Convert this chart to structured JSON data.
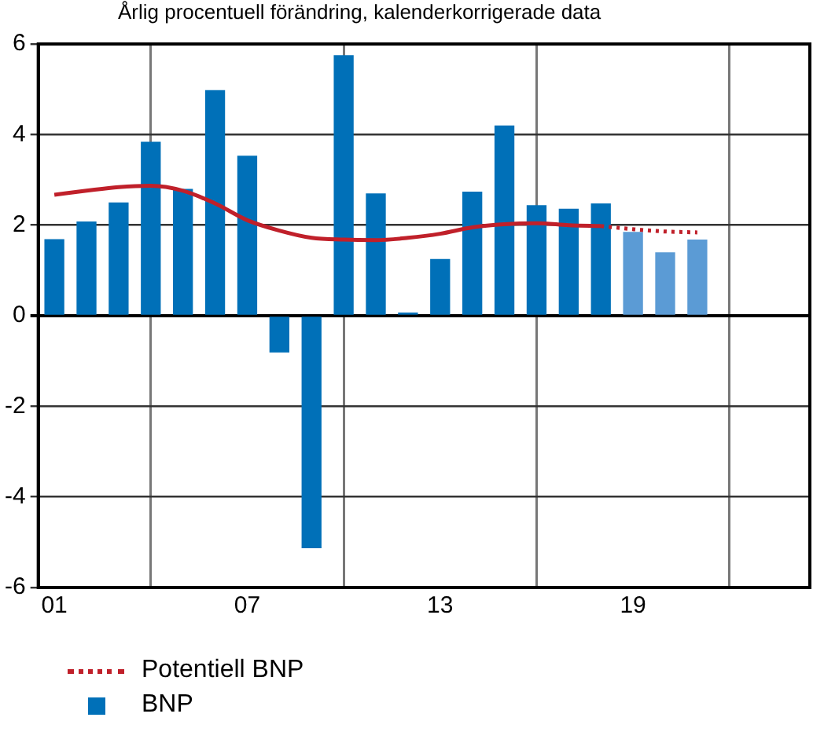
{
  "chart_data": {
    "type": "bar",
    "subtitle": "Årlig procentuell förändring, kalenderkorrigerade data",
    "x": [
      1,
      2,
      3,
      4,
      5,
      6,
      7,
      8,
      9,
      10,
      11,
      12,
      13,
      14,
      15,
      16,
      17,
      18,
      19,
      20,
      21
    ],
    "series": [
      {
        "name": "BNP",
        "color": "#0070b8",
        "colors": [
          "#0070b8",
          "#0070b8",
          "#0070b8",
          "#0070b8",
          "#0070b8",
          "#0070b8",
          "#0070b8",
          "#0070b8",
          "#0070b8",
          "#0070b8",
          "#0070b8",
          "#0070b8",
          "#0070b8",
          "#0070b8",
          "#0070b8",
          "#0070b8",
          "#0070b8",
          "#0070b8",
          "#5b9bd5",
          "#5b9bd5",
          "#5b9bd5"
        ],
        "values": [
          1.68,
          2.07,
          2.49,
          3.83,
          2.79,
          4.97,
          3.52,
          -0.8,
          -5.12,
          5.74,
          2.69,
          0.06,
          1.24,
          2.73,
          4.19,
          2.43,
          2.35,
          2.47,
          1.84,
          1.39,
          1.67
        ]
      },
      {
        "type": "line",
        "color": "#c0202a",
        "line_style": "solid",
        "values": [
          2.67,
          2.76,
          2.84,
          2.87,
          2.76,
          2.48,
          2.11,
          1.88,
          1.72,
          1.68,
          1.67,
          1.72,
          1.81,
          1.95,
          2.02,
          2.04,
          2.0,
          1.98,
          null,
          null,
          null
        ]
      },
      {
        "name": "Potentiell BNP",
        "type": "line",
        "color": "#c0202a",
        "line_style": "dotted",
        "values": [
          null,
          null,
          null,
          null,
          null,
          null,
          null,
          null,
          null,
          null,
          null,
          null,
          null,
          null,
          null,
          null,
          null,
          1.98,
          1.91,
          1.86,
          1.84
        ]
      }
    ],
    "xlim": [
      0.5,
      24.5
    ],
    "xticks": [
      {
        "value": 1,
        "label": "01"
      },
      {
        "value": 7,
        "label": "07"
      },
      {
        "value": 13,
        "label": "13"
      },
      {
        "value": 19,
        "label": "19"
      }
    ],
    "ylim": [
      -6,
      6
    ],
    "yticks": [
      -6,
      -4,
      -2,
      0,
      2,
      4,
      6
    ],
    "grid": true,
    "legend": "bottom left",
    "marker": "none"
  }
}
